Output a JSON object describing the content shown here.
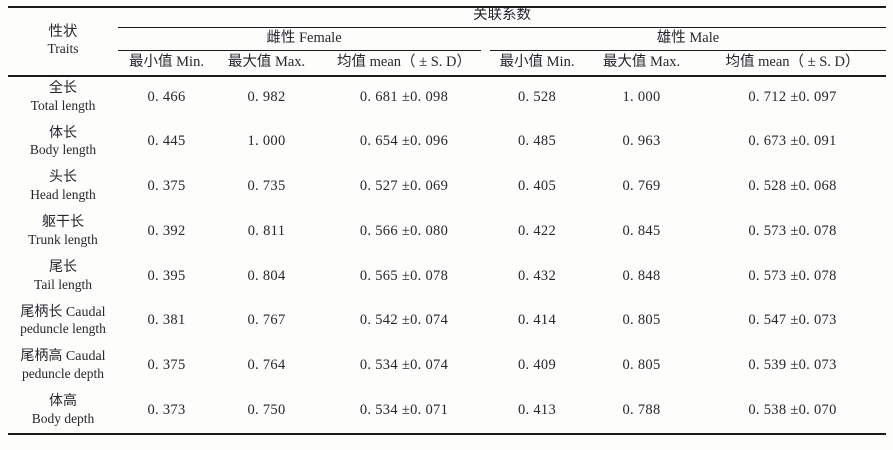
{
  "table": {
    "span_header": "关联系数",
    "trait_header": {
      "zh": "性状",
      "en": "Traits"
    },
    "groups": [
      {
        "label": "雌性 Female"
      },
      {
        "label": "雄性 Male"
      }
    ],
    "sub_headers": [
      "最小值 Min.",
      "最大值 Max.",
      "均值 mean（ ± S. D）"
    ],
    "rows": [
      {
        "line1": "全长",
        "line2": "Total length",
        "f_min": "0. 466",
        "f_max": "0. 982",
        "f_mean": "0. 681 ±0. 098",
        "m_min": "0. 528",
        "m_max": "1. 000",
        "m_mean": "0. 712 ±0. 097"
      },
      {
        "line1": "体长",
        "line2": "Body length",
        "f_min": "0. 445",
        "f_max": "1. 000",
        "f_mean": "0. 654 ±0. 096",
        "m_min": "0. 485",
        "m_max": "0. 963",
        "m_mean": "0. 673 ±0. 091"
      },
      {
        "line1": "头长",
        "line2": "Head length",
        "f_min": "0. 375",
        "f_max": "0. 735",
        "f_mean": "0. 527 ±0. 069",
        "m_min": "0. 405",
        "m_max": "0. 769",
        "m_mean": "0. 528 ±0. 068"
      },
      {
        "line1": "躯干长",
        "line2": "Trunk length",
        "f_min": "0. 392",
        "f_max": "0. 811",
        "f_mean": "0. 566 ±0. 080",
        "m_min": "0. 422",
        "m_max": "0. 845",
        "m_mean": "0. 573 ±0. 078"
      },
      {
        "line1": "尾长",
        "line2": "Tail length",
        "f_min": "0. 395",
        "f_max": "0. 804",
        "f_mean": "0. 565 ±0. 078",
        "m_min": "0. 432",
        "m_max": "0. 848",
        "m_mean": "0. 573 ±0. 078"
      },
      {
        "line1": "尾柄长 Caudal",
        "line2": "peduncle length",
        "f_min": "0. 381",
        "f_max": "0. 767",
        "f_mean": "0. 542 ±0. 074",
        "m_min": "0. 414",
        "m_max": "0. 805",
        "m_mean": "0. 547 ±0. 073"
      },
      {
        "line1": "尾柄高 Caudal",
        "line2": "peduncle depth",
        "f_min": "0. 375",
        "f_max": "0. 764",
        "f_mean": "0. 534 ±0. 074",
        "m_min": "0. 409",
        "m_max": "0. 805",
        "m_mean": "0. 539 ±0. 073"
      },
      {
        "line1": "体高",
        "line2": "Body depth",
        "f_min": "0. 373",
        "f_max": "0. 750",
        "f_mean": "0. 534 ±0. 071",
        "m_min": "0. 413",
        "m_max": "0. 788",
        "m_mean": "0. 538 ±0. 070"
      }
    ]
  }
}
